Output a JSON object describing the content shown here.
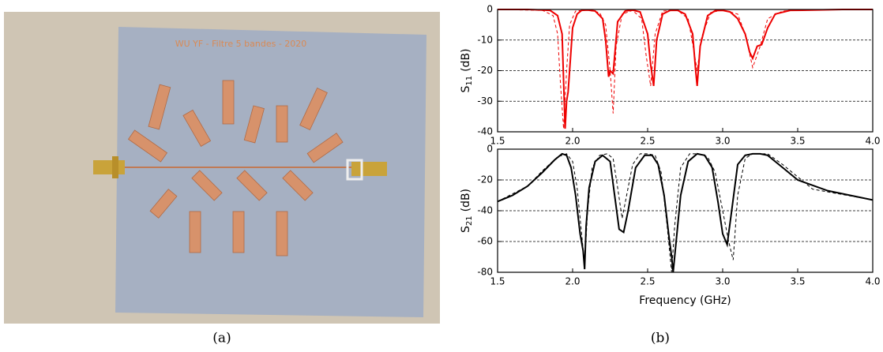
{
  "photo": {
    "board_label": "WU YF - Filtre 5 bandes - 2020",
    "caption": "(a)"
  },
  "figure": {
    "caption": "(b)"
  },
  "chart_data": [
    {
      "type": "line",
      "ylabel_main": "S",
      "ylabel_sub": "11",
      "ylabel_unit": "(dB)",
      "xlim": [
        1.5,
        4.0
      ],
      "xticks": [
        1.5,
        {
          "value": 2,
          "label": "2.0"
        },
        2.5,
        {
          "value": 3,
          "label": "3.0"
        },
        3.5,
        {
          "value": 4,
          "label": "4.0"
        }
      ],
      "ylim": [
        -40,
        0
      ],
      "yticks": [
        -40,
        -30,
        -20,
        -10,
        0
      ],
      "grid": true,
      "series": [
        {
          "color": "#ee0000",
          "line_style": "solid",
          "x": [
            1.5,
            1.7,
            1.85,
            1.9,
            1.93,
            1.95,
            1.96,
            1.97,
            1.98,
            2.0,
            2.03,
            2.06,
            2.1,
            2.15,
            2.2,
            2.22,
            2.24,
            2.25,
            2.27,
            2.3,
            2.35,
            2.4,
            2.45,
            2.5,
            2.52,
            2.54,
            2.56,
            2.6,
            2.65,
            2.7,
            2.75,
            2.8,
            2.82,
            2.83,
            2.85,
            2.9,
            2.95,
            3.0,
            3.05,
            3.1,
            3.15,
            3.18,
            3.2,
            3.23,
            3.26,
            3.3,
            3.35,
            3.45,
            3.6,
            3.8,
            4.0
          ],
          "values": [
            0,
            0,
            -0.3,
            -2,
            -8,
            -39,
            -30,
            -27,
            -20,
            -6,
            -1.5,
            -0.3,
            -0.2,
            -0.5,
            -3,
            -10,
            -22,
            -20,
            -21,
            -4,
            -0.5,
            -0.2,
            -0.8,
            -8,
            -18,
            -25,
            -10,
            -1.5,
            -0.3,
            -0.3,
            -1.5,
            -8,
            -20,
            -25,
            -12,
            -2,
            -0.4,
            -0.3,
            -0.8,
            -3,
            -8,
            -14,
            -16,
            -12,
            -11.5,
            -6,
            -1.5,
            -0.3,
            -0.2,
            0,
            0
          ]
        },
        {
          "color": "#ee0000",
          "line_style": "dashed",
          "x": [
            1.5,
            1.8,
            1.87,
            1.9,
            1.92,
            1.94,
            1.96,
            1.98,
            2.02,
            2.1,
            2.18,
            2.22,
            2.25,
            2.27,
            2.29,
            2.33,
            2.4,
            2.46,
            2.49,
            2.52,
            2.55,
            2.6,
            2.7,
            2.77,
            2.81,
            2.83,
            2.86,
            2.92,
            3.0,
            3.1,
            3.15,
            3.2,
            3.25,
            3.3,
            3.4,
            3.6,
            4.0
          ],
          "values": [
            0,
            -0.3,
            -2,
            -8,
            -25,
            -39,
            -20,
            -5,
            -0.5,
            -0.2,
            -1,
            -5,
            -20,
            -34,
            -12,
            -1.5,
            -0.3,
            -3,
            -15,
            -25,
            -8,
            -0.5,
            -0.3,
            -3,
            -14,
            -20,
            -9,
            -1,
            -0.2,
            -1.5,
            -8,
            -19,
            -12,
            -3,
            -0.5,
            0,
            0
          ]
        }
      ]
    },
    {
      "type": "line",
      "ylabel_main": "S",
      "ylabel_sub": "21",
      "ylabel_unit": "(dB)",
      "xlabel": "Frequency (GHz)",
      "xlim": [
        1.5,
        4.0
      ],
      "xticks": [
        1.5,
        {
          "value": 2,
          "label": "2.0"
        },
        2.5,
        {
          "value": 3,
          "label": "3.0"
        },
        3.5,
        {
          "value": 4,
          "label": "4.0"
        }
      ],
      "ylim": [
        -80,
        0
      ],
      "yticks": [
        -80,
        -60,
        -40,
        -20,
        0
      ],
      "grid": true,
      "series": [
        {
          "color": "#000000",
          "line_style": "solid",
          "x": [
            1.5,
            1.6,
            1.7,
            1.8,
            1.88,
            1.93,
            1.96,
            1.99,
            2.02,
            2.05,
            2.07,
            2.08,
            2.09,
            2.11,
            2.15,
            2.2,
            2.25,
            2.28,
            2.31,
            2.34,
            2.37,
            2.42,
            2.48,
            2.53,
            2.57,
            2.61,
            2.64,
            2.66,
            2.67,
            2.68,
            2.72,
            2.77,
            2.83,
            2.88,
            2.93,
            2.97,
            3.0,
            3.03,
            3.06,
            3.1,
            3.15,
            3.2,
            3.25,
            3.3,
            3.4,
            3.5,
            3.7,
            4.0
          ],
          "values": [
            -34,
            -30,
            -24,
            -15,
            -7,
            -3,
            -4,
            -12,
            -30,
            -55,
            -66,
            -78,
            -50,
            -25,
            -8,
            -4,
            -8,
            -30,
            -52,
            -54,
            -40,
            -12,
            -4,
            -4,
            -10,
            -30,
            -55,
            -70,
            -80,
            -70,
            -30,
            -8,
            -3,
            -4,
            -12,
            -35,
            -55,
            -62,
            -40,
            -10,
            -4,
            -3,
            -3,
            -4,
            -12,
            -20,
            -27,
            -33
          ]
        },
        {
          "color": "#000000",
          "line_style": "dashed",
          "x": [
            1.5,
            1.7,
            1.8,
            1.9,
            1.96,
            2.0,
            2.03,
            2.06,
            2.08,
            2.1,
            2.13,
            2.18,
            2.23,
            2.27,
            2.3,
            2.33,
            2.36,
            2.4,
            2.45,
            2.5,
            2.55,
            2.59,
            2.63,
            2.66,
            2.68,
            2.72,
            2.78,
            2.84,
            2.9,
            2.95,
            3.0,
            3.04,
            3.07,
            3.1,
            3.15,
            3.2,
            3.3,
            3.4,
            3.6,
            4.0
          ],
          "values": [
            -34,
            -24,
            -14,
            -5,
            -3,
            -8,
            -25,
            -55,
            -75,
            -40,
            -12,
            -4,
            -3,
            -6,
            -25,
            -45,
            -30,
            -10,
            -3,
            -3,
            -4,
            -15,
            -50,
            -80,
            -50,
            -12,
            -3,
            -3,
            -5,
            -15,
            -40,
            -60,
            -72,
            -30,
            -6,
            -3,
            -3,
            -10,
            -26,
            -33
          ]
        }
      ]
    }
  ]
}
